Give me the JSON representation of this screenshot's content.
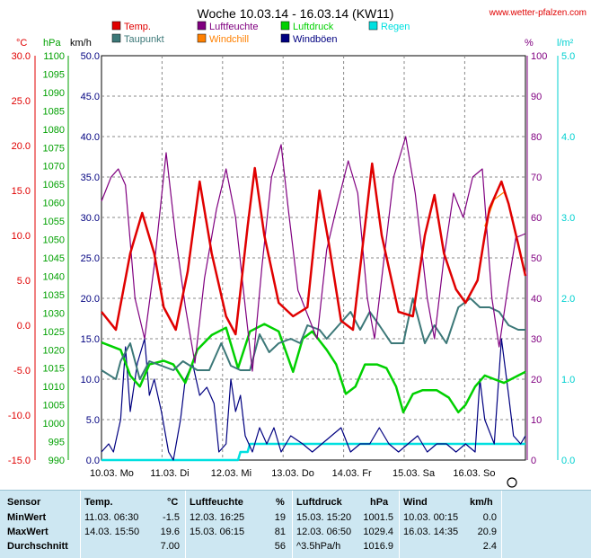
{
  "title": "Woche 10.03.14 - 16.03.14 (KW11)",
  "site": "www.wetter-pfalzen.com",
  "legend": [
    {
      "label": "Temp.",
      "color": "#e00000"
    },
    {
      "label": "Luftfeuchte",
      "color": "#800080"
    },
    {
      "label": "Luftdruck",
      "color": "#00d000"
    },
    {
      "label": "Regen",
      "color": "#00e0e0"
    },
    {
      "label": "Taupunkt",
      "color": "#3c7878"
    },
    {
      "label": "Windchill",
      "color": "#ff8000"
    },
    {
      "label": "Windböen",
      "color": "#000080"
    }
  ],
  "axes": {
    "temp": {
      "unit": "°C",
      "ticks": [
        "30.0",
        "25.0",
        "20.0",
        "15.0",
        "10.0",
        "5.0",
        "0.0",
        "-5.0",
        "-10.0",
        "-15.0"
      ],
      "range": [
        -15,
        30
      ],
      "color": "#e00000"
    },
    "pressure": {
      "unit": "hPa",
      "ticks": [
        "1100",
        "1095",
        "1090",
        "1085",
        "1080",
        "1075",
        "1070",
        "1065",
        "1060",
        "1055",
        "1050",
        "1045",
        "1040",
        "1035",
        "1030",
        "1025",
        "1020",
        "1015",
        "1010",
        "1005",
        "1000",
        "995",
        "990"
      ],
      "range": [
        990,
        1100
      ],
      "color": "#00a000"
    },
    "wind": {
      "unit": "km/h",
      "ticks": [
        "50.0",
        "45.0",
        "40.0",
        "35.0",
        "30.0",
        "25.0",
        "20.0",
        "15.0",
        "10.0",
        "5.0",
        "0.0"
      ],
      "range": [
        0,
        50
      ],
      "color": "#000080"
    },
    "humidity": {
      "unit": "%",
      "ticks": [
        "100",
        "90",
        "80",
        "70",
        "60",
        "50",
        "40",
        "30",
        "20",
        "10",
        "0"
      ],
      "range": [
        0,
        100
      ],
      "color": "#800080"
    },
    "rain": {
      "unit": "l/m²",
      "ticks": [
        "5.0",
        "4.0",
        "3.0",
        "2.0",
        "1.0",
        "0.0"
      ],
      "range": [
        0,
        5
      ],
      "color": "#00d0d0"
    }
  },
  "x_labels": [
    "10.03.  Mo",
    "11.03.  Di",
    "12.03.  Mi",
    "13.03.  Do",
    "14.03.  Fr",
    "15.03.  Sa",
    "16.03.  So"
  ],
  "chart_data": {
    "type": "line",
    "x_unit": "hours since 10.03. 00:00",
    "series": [
      {
        "name": "Temp.",
        "color": "#e00000",
        "axis": "temp",
        "points": [
          [
            0,
            1.5
          ],
          [
            6,
            -0.5
          ],
          [
            12,
            8
          ],
          [
            17,
            12.5
          ],
          [
            22,
            8
          ],
          [
            26,
            2
          ],
          [
            31,
            -0.5
          ],
          [
            36,
            6
          ],
          [
            41,
            16
          ],
          [
            46,
            8
          ],
          [
            52,
            1
          ],
          [
            56,
            -1
          ],
          [
            61,
            11
          ],
          [
            64,
            17.5
          ],
          [
            68,
            10
          ],
          [
            74,
            2.5
          ],
          [
            80,
            1
          ],
          [
            86,
            2
          ],
          [
            91,
            15
          ],
          [
            95,
            9
          ],
          [
            100,
            0.5
          ],
          [
            105,
            -0.5
          ],
          [
            110,
            11
          ],
          [
            113,
            18
          ],
          [
            117,
            10
          ],
          [
            124,
            1.5
          ],
          [
            130,
            1
          ],
          [
            135,
            10
          ],
          [
            139,
            14.5
          ],
          [
            143,
            8
          ],
          [
            148,
            4
          ],
          [
            152,
            2.5
          ],
          [
            157,
            5
          ],
          [
            160,
            10
          ],
          [
            162,
            13
          ],
          [
            167,
            16
          ],
          [
            170,
            13.5
          ],
          [
            174,
            9
          ],
          [
            177,
            5.5
          ]
        ]
      },
      {
        "name": "Taupunkt",
        "color": "#3c7878",
        "axis": "temp",
        "points": [
          [
            0,
            -5
          ],
          [
            6,
            -6
          ],
          [
            8,
            -4
          ],
          [
            12,
            -2
          ],
          [
            16,
            -6
          ],
          [
            20,
            -4
          ],
          [
            25,
            -4.5
          ],
          [
            30,
            -5
          ],
          [
            34,
            -4
          ],
          [
            40,
            -5
          ],
          [
            45,
            -5
          ],
          [
            50,
            -2
          ],
          [
            54,
            -4.5
          ],
          [
            58,
            -5
          ],
          [
            62,
            -5
          ],
          [
            66,
            -1
          ],
          [
            70,
            -3
          ],
          [
            74,
            -2
          ],
          [
            79,
            -1.5
          ],
          [
            83,
            -2
          ],
          [
            86,
            0
          ],
          [
            91,
            -0.5
          ],
          [
            94,
            -1.5
          ],
          [
            99,
            0
          ],
          [
            104,
            1.5
          ],
          [
            108,
            -0.5
          ],
          [
            112,
            1.5
          ],
          [
            116,
            0
          ],
          [
            121,
            -2
          ],
          [
            126,
            -2
          ],
          [
            130,
            3
          ],
          [
            135,
            -2
          ],
          [
            139,
            0
          ],
          [
            144,
            -2
          ],
          [
            149,
            2
          ],
          [
            154,
            3
          ],
          [
            158,
            2
          ],
          [
            162,
            2
          ],
          [
            166,
            1.5
          ],
          [
            170,
            0
          ],
          [
            174,
            -0.5
          ],
          [
            177,
            -0.5
          ]
        ]
      },
      {
        "name": "Windchill",
        "color": "#ff8000",
        "axis": "temp",
        "points": [
          [
            160,
            11
          ],
          [
            164,
            14
          ],
          [
            168,
            14.8
          ],
          [
            170,
            13.5
          ]
        ]
      },
      {
        "name": "Luftfeuchte",
        "color": "#800080",
        "axis": "humidity",
        "points": [
          [
            0,
            64
          ],
          [
            4,
            70
          ],
          [
            7,
            72
          ],
          [
            10,
            68
          ],
          [
            14,
            40
          ],
          [
            18,
            30
          ],
          [
            22,
            48
          ],
          [
            27,
            76
          ],
          [
            31,
            55
          ],
          [
            35,
            38
          ],
          [
            39,
            24
          ],
          [
            43,
            45
          ],
          [
            48,
            62
          ],
          [
            52,
            72
          ],
          [
            56,
            60
          ],
          [
            60,
            38
          ],
          [
            63,
            22
          ],
          [
            67,
            48
          ],
          [
            71,
            70
          ],
          [
            75,
            78
          ],
          [
            78,
            62
          ],
          [
            82,
            42
          ],
          [
            86,
            36
          ],
          [
            90,
            30
          ],
          [
            94,
            52
          ],
          [
            98,
            62
          ],
          [
            103,
            74
          ],
          [
            107,
            66
          ],
          [
            111,
            40
          ],
          [
            114,
            30
          ],
          [
            118,
            50
          ],
          [
            122,
            70
          ],
          [
            127,
            80
          ],
          [
            131,
            66
          ],
          [
            136,
            40
          ],
          [
            139,
            30
          ],
          [
            143,
            50
          ],
          [
            147,
            66
          ],
          [
            151,
            60
          ],
          [
            155,
            70
          ],
          [
            159,
            72
          ],
          [
            163,
            40
          ],
          [
            166,
            28
          ],
          [
            170,
            44
          ],
          [
            173,
            55
          ],
          [
            177,
            56
          ]
        ]
      },
      {
        "name": "Luftdruck",
        "color": "#00d000",
        "axis": "pressure",
        "points": [
          [
            0,
            1022
          ],
          [
            8,
            1020
          ],
          [
            12,
            1013
          ],
          [
            16,
            1010
          ],
          [
            20,
            1016
          ],
          [
            26,
            1017
          ],
          [
            30,
            1016
          ],
          [
            35,
            1011
          ],
          [
            40,
            1020
          ],
          [
            46,
            1024
          ],
          [
            52,
            1026
          ],
          [
            57,
            1015
          ],
          [
            62,
            1025
          ],
          [
            68,
            1027
          ],
          [
            74,
            1025
          ],
          [
            80,
            1014
          ],
          [
            84,
            1023
          ],
          [
            88,
            1025
          ],
          [
            94,
            1020
          ],
          [
            98,
            1016
          ],
          [
            102,
            1008
          ],
          [
            106,
            1010
          ],
          [
            110,
            1016
          ],
          [
            115,
            1016
          ],
          [
            119,
            1015
          ],
          [
            123,
            1010
          ],
          [
            126,
            1003
          ],
          [
            130,
            1008
          ],
          [
            134,
            1009
          ],
          [
            140,
            1009
          ],
          [
            145,
            1007
          ],
          [
            149,
            1003
          ],
          [
            152,
            1005
          ],
          [
            156,
            1010
          ],
          [
            160,
            1013
          ],
          [
            164,
            1012
          ],
          [
            168,
            1011
          ],
          [
            174,
            1013
          ],
          [
            177,
            1014
          ]
        ]
      },
      {
        "name": "Windböen",
        "color": "#000080",
        "axis": "wind",
        "points": [
          [
            0,
            1
          ],
          [
            3,
            2
          ],
          [
            5,
            1
          ],
          [
            8,
            5
          ],
          [
            10,
            14
          ],
          [
            12,
            6
          ],
          [
            15,
            12
          ],
          [
            18,
            15
          ],
          [
            20,
            8
          ],
          [
            22,
            10
          ],
          [
            25,
            6
          ],
          [
            28,
            1
          ],
          [
            30,
            0
          ],
          [
            33,
            5
          ],
          [
            35,
            10
          ],
          [
            38,
            12
          ],
          [
            41,
            8
          ],
          [
            44,
            9
          ],
          [
            47,
            7
          ],
          [
            49,
            1
          ],
          [
            52,
            2
          ],
          [
            54,
            10
          ],
          [
            56,
            6
          ],
          [
            58,
            8
          ],
          [
            60,
            3
          ],
          [
            63,
            1
          ],
          [
            66,
            4
          ],
          [
            69,
            2
          ],
          [
            72,
            4
          ],
          [
            75,
            1
          ],
          [
            79,
            3
          ],
          [
            84,
            2
          ],
          [
            88,
            1
          ],
          [
            92,
            2
          ],
          [
            96,
            3
          ],
          [
            100,
            4
          ],
          [
            104,
            1
          ],
          [
            108,
            2
          ],
          [
            112,
            2
          ],
          [
            116,
            4
          ],
          [
            120,
            2
          ],
          [
            124,
            1
          ],
          [
            128,
            2
          ],
          [
            132,
            3
          ],
          [
            136,
            1
          ],
          [
            140,
            2
          ],
          [
            144,
            2
          ],
          [
            148,
            1
          ],
          [
            152,
            2
          ],
          [
            156,
            1
          ],
          [
            158,
            10
          ],
          [
            160,
            5
          ],
          [
            164,
            2
          ],
          [
            167,
            15
          ],
          [
            170,
            8
          ],
          [
            172,
            3
          ],
          [
            175,
            2
          ],
          [
            177,
            3
          ]
        ]
      },
      {
        "name": "Regen",
        "color": "#00e0e0",
        "axis": "rain",
        "points": [
          [
            0,
            0
          ],
          [
            57,
            0
          ],
          [
            58,
            0.1
          ],
          [
            61,
            0.1
          ],
          [
            62,
            0.2
          ],
          [
            177,
            0.2
          ]
        ]
      }
    ]
  },
  "table": {
    "headers": {
      "sensor": "Sensor",
      "temp": "Temp.",
      "temp_unit": "°C",
      "hum": "Luftfeuchte",
      "hum_unit": "%",
      "press": "Luftdruck",
      "press_unit": "hPa",
      "wind": "Wind",
      "wind_unit": "km/h"
    },
    "rows": [
      {
        "label": "MinWert",
        "temp_time": "11.03.  06:30",
        "temp": "-1.5",
        "hum_time": "12.03.  16:25",
        "hum": "19",
        "press_time": "15.03.  15:20",
        "press": "1001.5",
        "wind_time": "10.03.  00:15",
        "wind": "0.0"
      },
      {
        "label": "MaxWert",
        "temp_time": "14.03.  15:50",
        "temp": "19.6",
        "hum_time": "15.03.  06:15",
        "hum": "81",
        "press_time": "12.03.  06:50",
        "press": "1029.4",
        "wind_time": "16.03.  14:35",
        "wind": "20.9"
      },
      {
        "label": "Durchschnitt",
        "temp_time": "",
        "temp": "7.00",
        "hum_time": "",
        "hum": "56",
        "press_time": "^3.5hPa/h",
        "press": "1016.9",
        "wind_time": "",
        "wind": "2.4"
      }
    ]
  }
}
